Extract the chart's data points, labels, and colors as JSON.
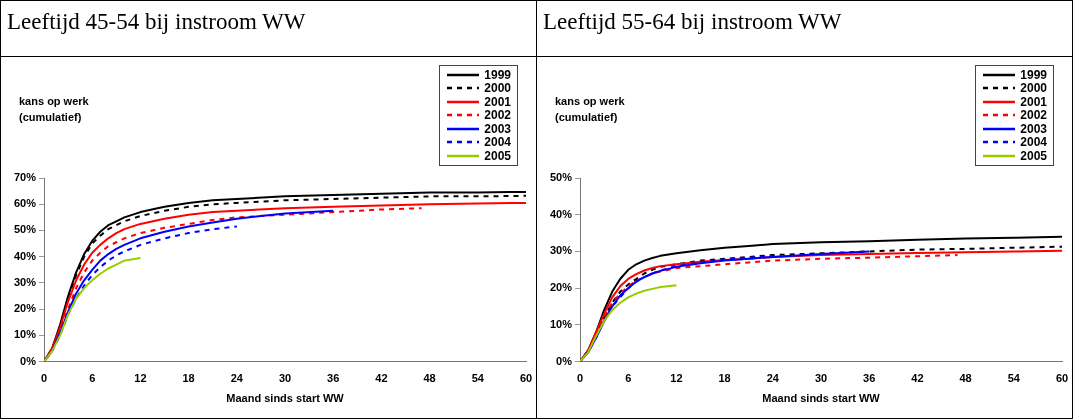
{
  "chart_data": [
    {
      "type": "line",
      "title": "Leeftijd 45-54 bij instroom WW",
      "xlabel": "Maand sinds start WW",
      "ylabel": "kans op werk (cumulatief)",
      "xlim": [
        0,
        60
      ],
      "xticks": [
        0,
        6,
        12,
        18,
        24,
        30,
        36,
        42,
        48,
        54,
        60
      ],
      "ylim": [
        0,
        70
      ],
      "yticks": [
        {
          "value": 0,
          "label": "0%"
        },
        {
          "value": 10,
          "label": "10%"
        },
        {
          "value": 20,
          "label": "20%"
        },
        {
          "value": 30,
          "label": "30%"
        },
        {
          "value": 40,
          "label": "40%"
        },
        {
          "value": 50,
          "label": "50%"
        },
        {
          "value": 60,
          "label": "60%"
        },
        {
          "value": 70,
          "label": "70%"
        }
      ],
      "grid": false,
      "legend": "top right",
      "marker": "none",
      "series": [
        {
          "name": "1999",
          "color": "#000000",
          "line_style": "solid",
          "x": [
            0,
            1,
            2,
            3,
            4,
            5,
            6,
            7,
            8,
            9,
            10,
            12,
            15,
            18,
            21,
            24,
            30,
            36,
            42,
            48,
            54,
            60
          ],
          "values": [
            0,
            5,
            14,
            25,
            34,
            41,
            46,
            49.5,
            52,
            53.5,
            55,
            57,
            59,
            60.5,
            61.5,
            62,
            63,
            63.5,
            64,
            64.5,
            64.5,
            64.7
          ]
        },
        {
          "name": "2000",
          "color": "#000000",
          "line_style": "dashed",
          "x": [
            0,
            1,
            2,
            3,
            4,
            5,
            6,
            7,
            8,
            9,
            10,
            12,
            15,
            18,
            21,
            24,
            30,
            36,
            42,
            48,
            54,
            60
          ],
          "values": [
            0,
            5,
            13,
            24,
            33,
            40,
            45,
            48,
            50.5,
            52,
            53.5,
            55.5,
            57.5,
            59,
            60,
            60.5,
            61.5,
            62,
            62.5,
            63,
            63,
            63.2
          ]
        },
        {
          "name": "2001",
          "color": "#ff0000",
          "line_style": "solid",
          "x": [
            0,
            1,
            2,
            3,
            4,
            5,
            6,
            7,
            8,
            9,
            10,
            12,
            15,
            18,
            21,
            24,
            30,
            36,
            42,
            48,
            54,
            60
          ],
          "values": [
            0,
            5,
            13,
            23,
            31,
            37,
            41.5,
            44.5,
            47,
            49,
            50.5,
            52.5,
            54.5,
            56,
            57,
            57.5,
            58.5,
            59,
            59.5,
            60,
            60.3,
            60.5
          ]
        },
        {
          "name": "2002",
          "color": "#ff0000",
          "line_style": "dashed",
          "x": [
            0,
            1,
            2,
            3,
            4,
            5,
            6,
            7,
            8,
            9,
            10,
            12,
            15,
            18,
            21,
            24,
            30,
            36,
            42,
            47
          ],
          "values": [
            0,
            5,
            12,
            20,
            28,
            34,
            38.5,
            41.5,
            44,
            45.5,
            47,
            49,
            51,
            52.5,
            54,
            55,
            56,
            57,
            58,
            58.5
          ]
        },
        {
          "name": "2003",
          "color": "#0000ff",
          "line_style": "solid",
          "x": [
            0,
            1,
            2,
            3,
            4,
            5,
            6,
            7,
            8,
            9,
            10,
            12,
            15,
            18,
            21,
            24,
            30,
            36
          ],
          "values": [
            0,
            4,
            11,
            19,
            26,
            31,
            35,
            38.5,
            41,
            43,
            44.5,
            47,
            49.5,
            51.5,
            53,
            54.5,
            56.5,
            57.5
          ]
        },
        {
          "name": "2004",
          "color": "#0000ff",
          "line_style": "dashed",
          "x": [
            0,
            1,
            2,
            3,
            4,
            5,
            6,
            7,
            8,
            9,
            10,
            12,
            15,
            18,
            21,
            24
          ],
          "values": [
            0,
            4,
            10,
            18,
            24,
            29,
            33,
            36,
            38.5,
            40.5,
            42,
            44.5,
            47,
            49,
            50.5,
            51.5
          ]
        },
        {
          "name": "2005",
          "color": "#99cc00",
          "line_style": "solid",
          "x": [
            0,
            1,
            2,
            3,
            4,
            5,
            6,
            7,
            8,
            9,
            10,
            12
          ],
          "values": [
            0,
            4,
            10,
            18,
            24,
            28,
            31,
            33.5,
            35.5,
            37,
            38.5,
            39.5
          ]
        }
      ]
    },
    {
      "type": "line",
      "title": "Leeftijd 55-64 bij instroom WW",
      "xlabel": "Maand sinds start WW",
      "ylabel": "kans op werk (cumulatief)",
      "xlim": [
        0,
        60
      ],
      "xticks": [
        0,
        6,
        12,
        18,
        24,
        30,
        36,
        42,
        48,
        54,
        60
      ],
      "ylim": [
        0,
        50
      ],
      "yticks": [
        {
          "value": 0,
          "label": "0%"
        },
        {
          "value": 10,
          "label": "10%"
        },
        {
          "value": 20,
          "label": "20%"
        },
        {
          "value": 30,
          "label": "30%"
        },
        {
          "value": 40,
          "label": "40%"
        },
        {
          "value": 50,
          "label": "50%"
        }
      ],
      "grid": false,
      "legend": "top right",
      "marker": "none",
      "series": [
        {
          "name": "1999",
          "color": "#000000",
          "line_style": "solid",
          "x": [
            0,
            1,
            2,
            3,
            4,
            5,
            6,
            7,
            8,
            9,
            10,
            12,
            15,
            18,
            21,
            24,
            30,
            36,
            42,
            48,
            54,
            60
          ],
          "values": [
            0,
            3,
            8,
            14,
            19,
            22.5,
            25,
            26.5,
            27.5,
            28.2,
            28.8,
            29.5,
            30.3,
            31,
            31.5,
            32,
            32.5,
            32.8,
            33.2,
            33.5,
            33.7,
            34
          ]
        },
        {
          "name": "2000",
          "color": "#000000",
          "line_style": "dashed",
          "x": [
            0,
            1,
            2,
            3,
            4,
            5,
            6,
            7,
            8,
            9,
            10,
            12,
            15,
            18,
            21,
            24,
            30,
            36,
            42,
            48,
            54,
            60
          ],
          "values": [
            0,
            3,
            7,
            12,
            16,
            19,
            21,
            22.5,
            24,
            25,
            25.8,
            26.5,
            27.5,
            28,
            28.5,
            29,
            29.5,
            30,
            30.5,
            30.7,
            31,
            31.3
          ]
        },
        {
          "name": "2001",
          "color": "#ff0000",
          "line_style": "solid",
          "x": [
            0,
            1,
            2,
            3,
            4,
            5,
            6,
            7,
            8,
            9,
            10,
            12,
            15,
            18,
            21,
            24,
            30,
            36,
            42,
            48,
            54,
            60
          ],
          "values": [
            0,
            3,
            8,
            13,
            17.5,
            20.5,
            22.5,
            23.8,
            24.8,
            25.5,
            26,
            26.5,
            27.2,
            27.7,
            28,
            28.5,
            29,
            29.3,
            29.6,
            29.8,
            30,
            30.2
          ]
        },
        {
          "name": "2002",
          "color": "#ff0000",
          "line_style": "dashed",
          "x": [
            0,
            1,
            2,
            3,
            4,
            5,
            6,
            7,
            8,
            9,
            10,
            12,
            15,
            18,
            21,
            24,
            30,
            36,
            42,
            47
          ],
          "values": [
            0,
            3,
            7,
            12,
            16,
            18.5,
            20.5,
            22,
            23,
            24,
            24.5,
            25.5,
            26,
            26.5,
            27,
            27.5,
            28,
            28.3,
            28.7,
            29
          ]
        },
        {
          "name": "2003",
          "color": "#0000ff",
          "line_style": "solid",
          "x": [
            0,
            1,
            2,
            3,
            4,
            5,
            6,
            7,
            8,
            9,
            10,
            12,
            15,
            18,
            21,
            24,
            30,
            36
          ],
          "values": [
            0,
            2.5,
            6.5,
            11,
            15,
            18,
            20,
            21.8,
            23,
            24,
            24.7,
            25.8,
            26.8,
            27.5,
            28,
            28.5,
            29.3,
            30
          ]
        },
        {
          "name": "2004",
          "color": "#0000ff",
          "line_style": "dashed",
          "x": [
            0,
            1,
            2,
            3,
            4,
            5,
            6,
            7,
            8,
            9,
            10,
            12,
            15,
            18,
            21,
            24
          ],
          "values": [
            0,
            2.5,
            6.5,
            11,
            15,
            17.5,
            20,
            21.8,
            23,
            24,
            24.8,
            26,
            27,
            27.8,
            28.3,
            28.8
          ]
        },
        {
          "name": "2005",
          "color": "#99cc00",
          "line_style": "solid",
          "x": [
            0,
            1,
            2,
            3,
            4,
            5,
            6,
            7,
            8,
            9,
            10,
            12
          ],
          "values": [
            0,
            2.5,
            7,
            11,
            14,
            16,
            17.5,
            18.5,
            19.3,
            19.8,
            20.3,
            20.8
          ]
        }
      ]
    }
  ]
}
